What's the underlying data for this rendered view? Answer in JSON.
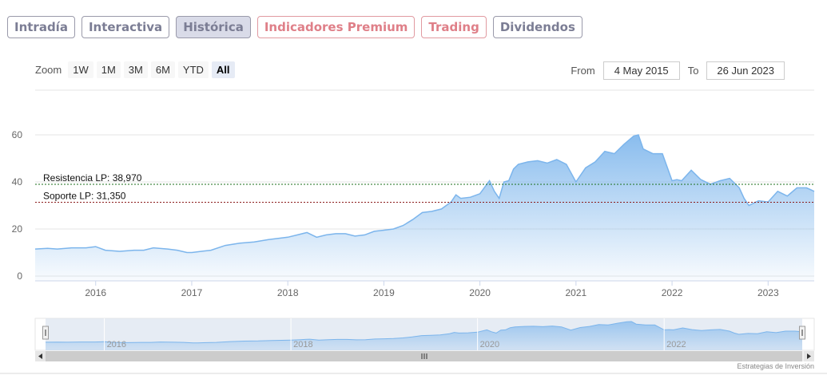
{
  "tabs": [
    {
      "label": "Intradía",
      "active": false,
      "color": "#7b7d94"
    },
    {
      "label": "Interactiva",
      "active": false,
      "color": "#7b7d94"
    },
    {
      "label": "Histórica",
      "active": true,
      "color": "#7b7d94"
    },
    {
      "label": "Indicadores Premium",
      "active": false,
      "color": "#df7f88"
    },
    {
      "label": "Trading",
      "active": false,
      "color": "#df7f88"
    },
    {
      "label": "Dividendos",
      "active": false,
      "color": "#7b7d94"
    }
  ],
  "zoom": {
    "label": "Zoom",
    "buttons": [
      "1W",
      "1M",
      "3M",
      "6M",
      "YTD",
      "All"
    ],
    "selected": "All"
  },
  "range": {
    "from_label": "From",
    "from_value": "4 May 2015",
    "to_label": "To",
    "to_value": "26 Jun 2023"
  },
  "credit": "Estrategias de Inversión",
  "chart_data": {
    "type": "area",
    "series_color": "#7cb5ec",
    "ylim": [
      0,
      60
    ],
    "y_ticks": [
      0,
      20,
      40,
      60
    ],
    "x_range": [
      2015.37,
      2023.48
    ],
    "x_ticks": [
      2016,
      2017,
      2018,
      2019,
      2020,
      2021,
      2022,
      2023
    ],
    "navigator_ticks": [
      2016,
      2018,
      2020,
      2022
    ],
    "series": [
      {
        "x": [
          2015.37,
          2015.5,
          2015.6,
          2015.75,
          2015.9,
          2016.0,
          2016.1,
          2016.25,
          2016.4,
          2016.5,
          2016.6,
          2016.75,
          2016.85,
          2016.95,
          2017.0,
          2017.1,
          2017.2,
          2017.35,
          2017.5,
          2017.65,
          2017.8,
          2017.9,
          2018.0,
          2018.1,
          2018.2,
          2018.3,
          2018.4,
          2018.5,
          2018.6,
          2018.7,
          2018.8,
          2018.9,
          2019.0,
          2019.1,
          2019.2,
          2019.3,
          2019.4,
          2019.5,
          2019.6,
          2019.7,
          2019.75,
          2019.8,
          2019.9,
          2020.0,
          2020.1,
          2020.15,
          2020.2,
          2020.25,
          2020.3,
          2020.35,
          2020.4,
          2020.5,
          2020.6,
          2020.7,
          2020.8,
          2020.9,
          2021.0,
          2021.1,
          2021.2,
          2021.3,
          2021.4,
          2021.5,
          2021.6,
          2021.65,
          2021.7,
          2021.8,
          2021.9,
          2022.0,
          2022.05,
          2022.1,
          2022.2,
          2022.3,
          2022.4,
          2022.5,
          2022.6,
          2022.7,
          2022.75,
          2022.8,
          2022.9,
          2023.0,
          2023.1,
          2023.2,
          2023.3,
          2023.4,
          2023.48
        ],
        "y": [
          11.5,
          11.8,
          11.5,
          12.0,
          12.0,
          12.5,
          11.0,
          10.5,
          11.0,
          11.0,
          12.0,
          11.5,
          11.0,
          10.0,
          10.0,
          10.5,
          11.0,
          13.0,
          14.0,
          14.5,
          15.5,
          16.0,
          16.5,
          17.5,
          18.5,
          16.5,
          17.5,
          18.0,
          18.0,
          17.0,
          17.5,
          19.0,
          19.5,
          20.0,
          21.5,
          24.0,
          27.0,
          27.5,
          28.5,
          31.5,
          34.5,
          33.0,
          33.5,
          35.0,
          40.5,
          36.0,
          33.0,
          40.0,
          40.5,
          45.5,
          47.5,
          48.5,
          49.0,
          48.0,
          49.5,
          47.5,
          40.0,
          46.0,
          48.5,
          53.0,
          52.0,
          56.0,
          59.5,
          60.0,
          54.0,
          52.0,
          52.0,
          40.5,
          41.0,
          40.5,
          45.0,
          41.0,
          39.0,
          40.5,
          41.5,
          37.5,
          33.0,
          30.0,
          32.0,
          31.5,
          36.0,
          34.0,
          37.5,
          37.5,
          36.0
        ]
      }
    ],
    "plot_lines": [
      {
        "label": "Resistencia LP: 38,970",
        "value": 38.97,
        "color": "#1a6e1a",
        "dash": true
      },
      {
        "label": "Soporte LP: 31,350",
        "value": 31.35,
        "color": "#8b1a1a",
        "dash": true
      }
    ]
  }
}
